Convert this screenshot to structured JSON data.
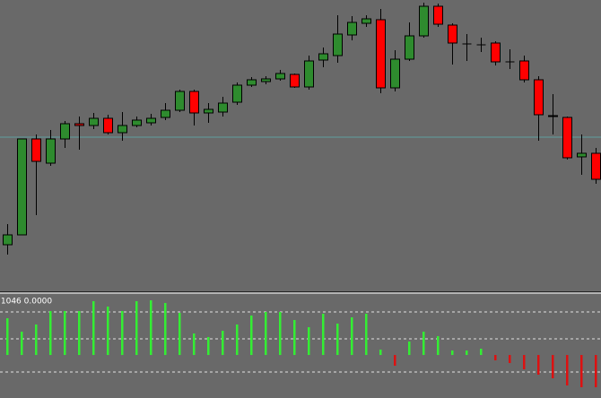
{
  "chart_data": [
    {
      "type": "candlestick",
      "open": [
        52,
        63,
        170,
        143,
        170,
        187,
        185,
        193,
        177,
        185,
        188,
        194,
        202,
        223,
        199,
        200,
        211,
        230,
        234,
        237,
        242,
        228,
        258,
        263,
        286,
        299,
        303,
        227,
        259,
        285,
        318,
        297,
        276,
        275,
        277,
        256,
        257,
        236,
        196,
        194,
        150,
        154
      ],
      "high": [
        75,
        170,
        175,
        180,
        190,
        195,
        199,
        197,
        200,
        195,
        198,
        210,
        225,
        225,
        210,
        217,
        233,
        239,
        240,
        247,
        243,
        263,
        272,
        308,
        307,
        308,
        315,
        269,
        300,
        322,
        321,
        299,
        287,
        283,
        279,
        270,
        263,
        240,
        220,
        195,
        175,
        160
      ],
      "low": [
        41,
        63,
        85,
        140,
        160,
        158,
        181,
        175,
        168,
        183,
        185,
        191,
        200,
        185,
        188,
        195,
        208,
        228,
        231,
        235,
        227,
        225,
        250,
        255,
        280,
        295,
        221,
        223,
        257,
        283,
        295,
        253,
        257,
        267,
        252,
        248,
        233,
        168,
        175,
        147,
        130,
        120
      ],
      "close": [
        63,
        170,
        145,
        170,
        187,
        185,
        193,
        177,
        185,
        191,
        193,
        202,
        223,
        199,
        203,
        210,
        230,
        236,
        237,
        243,
        228,
        257,
        265,
        287,
        300,
        304,
        227,
        259,
        285,
        318,
        298,
        277,
        276,
        275,
        256,
        256,
        236,
        197,
        195,
        149,
        154,
        125
      ],
      "up_color": "#2e8b2e",
      "down_color": "#ff0000",
      "hline": 172,
      "hline_color": "#5f9ea0",
      "ylim": [
        0,
        325
      ]
    },
    {
      "type": "bar",
      "label": ".1046 0.0000",
      "values": [
        41,
        26,
        34,
        49,
        49,
        49,
        60,
        54,
        49,
        60,
        61,
        58,
        47,
        24,
        20,
        27,
        34,
        44,
        48,
        48,
        39,
        31,
        46,
        35,
        42,
        46,
        6,
        -12,
        15,
        26,
        21,
        5,
        5,
        7,
        -6,
        -9,
        -16,
        -22,
        -26,
        -34,
        -36,
        -36
      ],
      "up_color": "#33ee33",
      "down_color": "#dd1111",
      "levels": [
        48,
        18,
        -19
      ],
      "ylim": [
        -48,
        69
      ]
    }
  ]
}
